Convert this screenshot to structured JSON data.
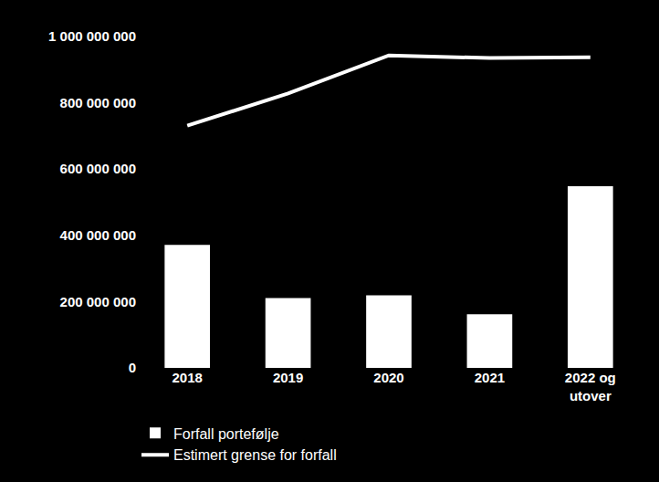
{
  "chart_data": {
    "type": "bar",
    "categories": [
      "2018",
      "2019",
      "2020",
      "2021",
      "2022 og utover"
    ],
    "series": [
      {
        "name": "Forfall portefølje",
        "type": "bar",
        "color": "#ffffff",
        "values": [
          371000000,
          211000000,
          219000000,
          162000000,
          548000000
        ]
      },
      {
        "name": "Estimert grense for forfall",
        "type": "line",
        "color": "#ffffff",
        "values": [
          731000000,
          828000000,
          943000000,
          935000000,
          937000000
        ]
      }
    ],
    "ylim": [
      0,
      1000000000
    ],
    "yticks": [
      0,
      {
        "value": 200000000,
        "label": "200 000 000"
      },
      {
        "value": 400000000,
        "label": "400 000 000"
      },
      {
        "value": 600000000,
        "label": "600 000 000"
      },
      {
        "value": 800000000,
        "label": "800 000 000"
      },
      {
        "value": 1000000000,
        "label": "1 000 000 000"
      }
    ],
    "grid": false,
    "legend": "bottom left"
  }
}
